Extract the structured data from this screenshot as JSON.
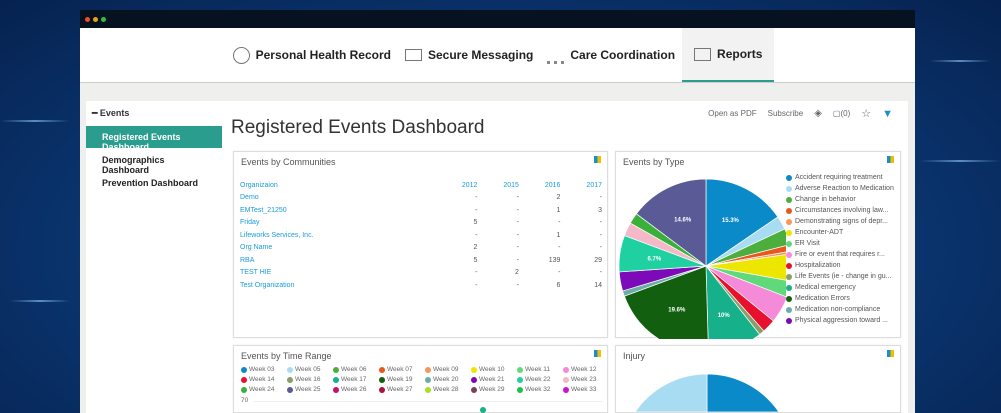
{
  "nav": {
    "items": [
      {
        "label": "Personal Health Record",
        "icon": "person-circle-icon"
      },
      {
        "label": "Secure Messaging",
        "icon": "envelope-icon"
      },
      {
        "label": "Care Coordination",
        "icon": "people-network-icon"
      },
      {
        "label": "Reports",
        "icon": "report-icon",
        "active": true
      }
    ]
  },
  "sidebar": {
    "section": "Events",
    "items": [
      {
        "label": "Registered Events Dashboard",
        "active": true
      },
      {
        "label": "Demographics Dashboard"
      },
      {
        "label": "Prevention Dashboard"
      }
    ]
  },
  "page": {
    "title": "Registered Events Dashboard"
  },
  "actions": {
    "open_pdf": "Open as PDF",
    "subscribe": "Subscribe",
    "comments": "(0)"
  },
  "accent": "#2a9d8f",
  "communities": {
    "title": "Events by Communities",
    "columns": [
      "Organizaion",
      "2012",
      "2015",
      "2016",
      "2017"
    ],
    "rows": [
      [
        "Demo",
        "-",
        "-",
        "2",
        "-"
      ],
      [
        "EMTest_21250",
        "-",
        "-",
        "1",
        "3"
      ],
      [
        "Friday",
        "5",
        "-",
        "-",
        "-"
      ],
      [
        "Lifeworks Services, Inc.",
        "-",
        "-",
        "1",
        "-"
      ],
      [
        "Org Name",
        "2",
        "-",
        "-",
        "-"
      ],
      [
        "RBA",
        "5",
        "-",
        "139",
        "29"
      ],
      [
        "TEST HIE",
        "-",
        "2",
        "-",
        "-"
      ],
      [
        "Test Organization",
        "-",
        "-",
        "6",
        "14"
      ]
    ]
  },
  "chart_data": [
    {
      "type": "pie",
      "title": "Events by Type",
      "legend": [
        "Accident requiring treatment",
        "Adverse Reaction to Medication",
        "Change in behavior",
        "Circumstances involving law...",
        "Demonstrating signs of depr...",
        "Encounter-ADT",
        "ER Visit",
        "Fire or event that requires r...",
        "Hospitalization",
        "Life Events (ie - change in gu...",
        "Medical emergency",
        "Medication Errors",
        "Medication non-compliance",
        "Physical aggression toward ..."
      ],
      "values": [
        15.3,
        2.5,
        3,
        1.2,
        0.5,
        5,
        3,
        5,
        2.5,
        1,
        10,
        19.6,
        1,
        3.5,
        6.7,
        2.5,
        2,
        14.6
      ],
      "labels": [
        "15.3%",
        "",
        "",
        "",
        "",
        "",
        "",
        "",
        "",
        "",
        "10%",
        "19.6%",
        "",
        "",
        "6.7%",
        "",
        "",
        "14.6%"
      ],
      "colors": [
        "#0a8ac8",
        "#a8dcf2",
        "#4cae3c",
        "#e8571e",
        "#f7975a",
        "#ece600",
        "#60d97a",
        "#f58ad8",
        "#e8112d",
        "#8a9e6a",
        "#16b08a",
        "#12600f",
        "#6aaea6",
        "#7d0ab8",
        "#1fd1a0",
        "#f4b8c8",
        "#3ab03a",
        "#5a5a96"
      ]
    },
    {
      "type": "pie",
      "title": "Injury",
      "values": [
        50,
        50
      ],
      "colors": [
        "#0a8ac8",
        "#a8dcf2"
      ]
    }
  ],
  "time_range": {
    "title": "Events by Time Range",
    "y_tick": "70",
    "weeks": [
      [
        "Week 03",
        "#0a8ac8"
      ],
      [
        "Week 05",
        "#a8dcf2"
      ],
      [
        "Week 06",
        "#4cae3c"
      ],
      [
        "Week 07",
        "#e8571e"
      ],
      [
        "Week 09",
        "#f7975a"
      ],
      [
        "Week 10",
        "#ece600"
      ],
      [
        "Week 11",
        "#60d97a"
      ],
      [
        "Week 12",
        "#f58ad8"
      ],
      [
        "Week 14",
        "#e8112d"
      ],
      [
        "Week 16",
        "#8a9e6a"
      ],
      [
        "Week 17",
        "#16b08a"
      ],
      [
        "Week 19",
        "#12600f"
      ],
      [
        "Week 20",
        "#6aaea6"
      ],
      [
        "Week 21",
        "#7d0ab8"
      ],
      [
        "Week 22",
        "#1fd1a0"
      ],
      [
        "Week 23",
        "#f4b8c8"
      ],
      [
        "Week 24",
        "#3ab03a"
      ],
      [
        "Week 25",
        "#5a5a96"
      ],
      [
        "Week 26",
        "#c8106a"
      ],
      [
        "Week 27",
        "#b0103a"
      ],
      [
        "Week 28",
        "#a8e020"
      ],
      [
        "Week 29",
        "#804050"
      ],
      [
        "Week 32",
        "#20c050"
      ],
      [
        "Week 33",
        "#d010d0"
      ]
    ]
  }
}
